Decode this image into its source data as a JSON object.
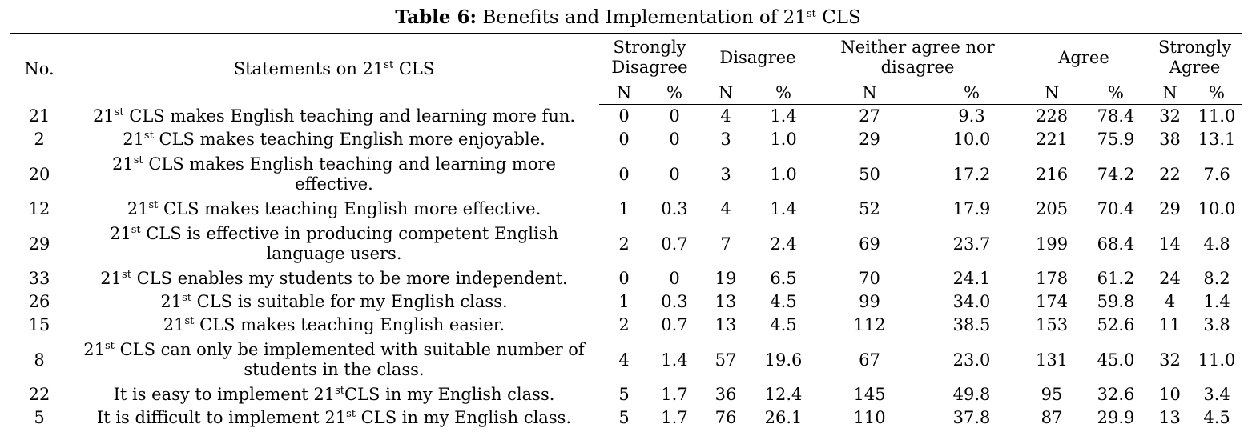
{
  "caption": {
    "label": "Table 6:",
    "text_before": " Benefits and Implementation of 21",
    "text_sup": "st",
    "text_after": " CLS"
  },
  "headers": {
    "no": "No.",
    "statement_pre": "Statements on 21",
    "statement_sup": "st",
    "statement_post": " CLS",
    "groups": [
      "Strongly Disagree",
      "Disagree",
      "Neither agree nor disagree",
      "Agree",
      "Strongly Agree"
    ],
    "sub_n": "N",
    "sub_pct": "%"
  },
  "rows": [
    {
      "no": "21",
      "pre": "21",
      "sup": "st",
      "post": " CLS makes English teaching and learning more fun.",
      "lines": 1,
      "vals": [
        "0",
        "0",
        "4",
        "1.4",
        "27",
        "9.3",
        "228",
        "78.4",
        "32",
        "11.0"
      ]
    },
    {
      "no": "2",
      "pre": "21",
      "sup": "st",
      "post": " CLS makes teaching English more enjoyable.",
      "lines": 1,
      "vals": [
        "0",
        "0",
        "3",
        "1.0",
        "29",
        "10.0",
        "221",
        "75.9",
        "38",
        "13.1"
      ]
    },
    {
      "no": "20",
      "pre": "21",
      "sup": "st",
      "post": " CLS makes English teaching and learning more effective.",
      "lines": 2,
      "vals": [
        "0",
        "0",
        "3",
        "1.0",
        "50",
        "17.2",
        "216",
        "74.2",
        "22",
        "7.6"
      ]
    },
    {
      "no": "12",
      "pre": "21",
      "sup": "st",
      "post": " CLS makes teaching English more effective.",
      "lines": 1,
      "vals": [
        "1",
        "0.3",
        "4",
        "1.4",
        "52",
        "17.9",
        "205",
        "70.4",
        "29",
        "10.0"
      ]
    },
    {
      "no": "29",
      "pre": "21",
      "sup": "st",
      "post": " CLS is effective in producing competent English language users.",
      "lines": 2,
      "vals": [
        "2",
        "0.7",
        "7",
        "2.4",
        "69",
        "23.7",
        "199",
        "68.4",
        "14",
        "4.8"
      ]
    },
    {
      "no": "33",
      "pre": "21",
      "sup": "st",
      "post": " CLS enables my students to be more independent.",
      "lines": 1,
      "vals": [
        "0",
        "0",
        "19",
        "6.5",
        "70",
        "24.1",
        "178",
        "61.2",
        "24",
        "8.2"
      ]
    },
    {
      "no": "26",
      "pre": "21",
      "sup": "st",
      "post": " CLS is suitable for my English class.",
      "lines": 1,
      "vals": [
        "1",
        "0.3",
        "13",
        "4.5",
        "99",
        "34.0",
        "174",
        "59.8",
        "4",
        "1.4"
      ]
    },
    {
      "no": "15",
      "pre": "21",
      "sup": "st",
      "post": " CLS makes teaching English easier.",
      "lines": 1,
      "vals": [
        "2",
        "0.7",
        "13",
        "4.5",
        "112",
        "38.5",
        "153",
        "52.6",
        "11",
        "3.8"
      ]
    },
    {
      "no": "8",
      "pre": "21",
      "sup": "st",
      "post": " CLS can only be implemented with suitable number of students in the class.",
      "lines": 2,
      "vals": [
        "4",
        "1.4",
        "57",
        "19.6",
        "67",
        "23.0",
        "131",
        "45.0",
        "32",
        "11.0"
      ]
    },
    {
      "no": "22",
      "pre": "It is easy to implement 21",
      "sup": "st",
      "post": "CLS in my English class.",
      "lines": 1,
      "vals": [
        "5",
        "1.7",
        "36",
        "12.4",
        "145",
        "49.8",
        "95",
        "32.6",
        "10",
        "3.4"
      ]
    },
    {
      "no": "5",
      "pre": "It is difficult to implement 21",
      "sup": "st",
      "post": " CLS in my English class.",
      "lines": 1,
      "vals": [
        "5",
        "1.7",
        "76",
        "26.1",
        "110",
        "37.8",
        "87",
        "29.9",
        "13",
        "4.5"
      ]
    }
  ]
}
